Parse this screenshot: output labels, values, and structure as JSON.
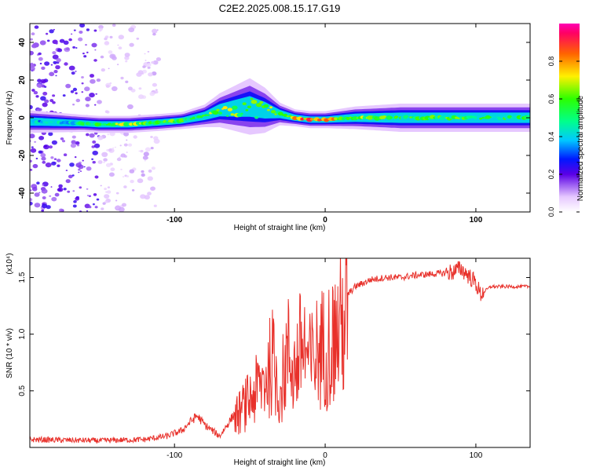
{
  "title": "C2E2.2025.008.15.17.G19",
  "colors": {
    "snr_line": "#e8302a",
    "axis": "#000000"
  },
  "chart_data": [
    {
      "type": "heatmap",
      "xlabel": "Height of straight line (km)",
      "ylabel": "Frequency (Hz)",
      "xlim": [
        -196,
        136
      ],
      "ylim": [
        -50,
        50
      ],
      "x_ticks": [
        -100,
        0,
        100
      ],
      "x_tick_labels": [
        "-100",
        "0",
        "100"
      ],
      "y_ticks": [
        -40,
        -20,
        0,
        20,
        40
      ],
      "y_tick_labels": [
        "-40",
        "-20",
        "0",
        "20",
        "40"
      ],
      "colorbar": {
        "label": "Normalized spectral amplitude",
        "range": [
          0,
          1
        ],
        "ticks": [
          0,
          0.2,
          0.4,
          0.6,
          0.8
        ],
        "tick_labels": [
          "0.0",
          "0.2",
          "0.4",
          "0.6",
          "0.8"
        ]
      },
      "ridge": {
        "description": "main spectral ridge: x (km), center frequency (Hz), half width (Hz), amplitude",
        "points": [
          [
            -196,
            -2,
            2,
            0.35
          ],
          [
            -160,
            -3,
            1.5,
            0.45
          ],
          [
            -150,
            -3.5,
            1.5,
            0.55
          ],
          [
            -130,
            -3.5,
            1.5,
            0.6
          ],
          [
            -110,
            -2.5,
            1.5,
            0.55
          ],
          [
            -95,
            -1.5,
            1.5,
            0.55
          ],
          [
            -80,
            1,
            2,
            0.55
          ],
          [
            -70,
            4,
            3,
            0.6
          ],
          [
            -60,
            5,
            4,
            0.6
          ],
          [
            -50,
            6,
            5,
            0.55
          ],
          [
            -40,
            4,
            4,
            0.6
          ],
          [
            -30,
            2,
            2,
            0.6
          ],
          [
            -20,
            0,
            1.5,
            0.8
          ],
          [
            -10,
            -1,
            1.5,
            0.8
          ],
          [
            0,
            -1,
            1.5,
            0.7
          ],
          [
            20,
            0,
            2,
            0.6
          ],
          [
            50,
            0,
            2.5,
            0.5
          ],
          [
            80,
            0,
            2.5,
            0.55
          ],
          [
            100,
            0,
            2.5,
            0.5
          ],
          [
            136,
            0,
            2.5,
            0.5
          ]
        ]
      },
      "noise_region": {
        "x_range": [
          -196,
          -150
        ],
        "freq_range": [
          -50,
          50
        ]
      }
    },
    {
      "type": "line",
      "xlabel": "Height of straight line (km)",
      "ylabel": "SNR (10 * v/v)",
      "y_scale_label": "(x10⁴)",
      "xlim": [
        -196,
        136
      ],
      "ylim": [
        0,
        1.67
      ],
      "x_ticks": [
        -100,
        0,
        100
      ],
      "x_tick_labels": [
        "-100",
        "0",
        "100"
      ],
      "y_ticks": [
        0.5,
        1.0,
        1.5
      ],
      "y_tick_labels": [
        "0.5",
        "1.0",
        "1.5"
      ],
      "series": [
        {
          "name": "SNR",
          "x": [
            -196,
            -150,
            -120,
            -105,
            -95,
            -90,
            -85,
            -80,
            -70,
            -60,
            -50,
            -40,
            -35,
            -30,
            -25,
            -20,
            -15,
            -10,
            -5,
            0,
            5,
            10,
            15,
            20,
            30,
            40,
            50,
            60,
            70,
            80,
            85,
            90,
            95,
            100,
            103,
            110,
            120,
            136
          ],
          "values": [
            0.07,
            0.06,
            0.07,
            0.1,
            0.15,
            0.22,
            0.28,
            0.2,
            0.1,
            0.3,
            0.5,
            0.7,
            0.9,
            0.55,
            1.0,
            0.8,
            1.1,
            0.85,
            1.0,
            1.05,
            1.1,
            1.25,
            1.35,
            1.42,
            1.48,
            1.5,
            1.5,
            1.52,
            1.53,
            1.54,
            1.55,
            1.58,
            1.52,
            1.45,
            1.35,
            1.42,
            1.42,
            1.42
          ]
        }
      ]
    }
  ]
}
